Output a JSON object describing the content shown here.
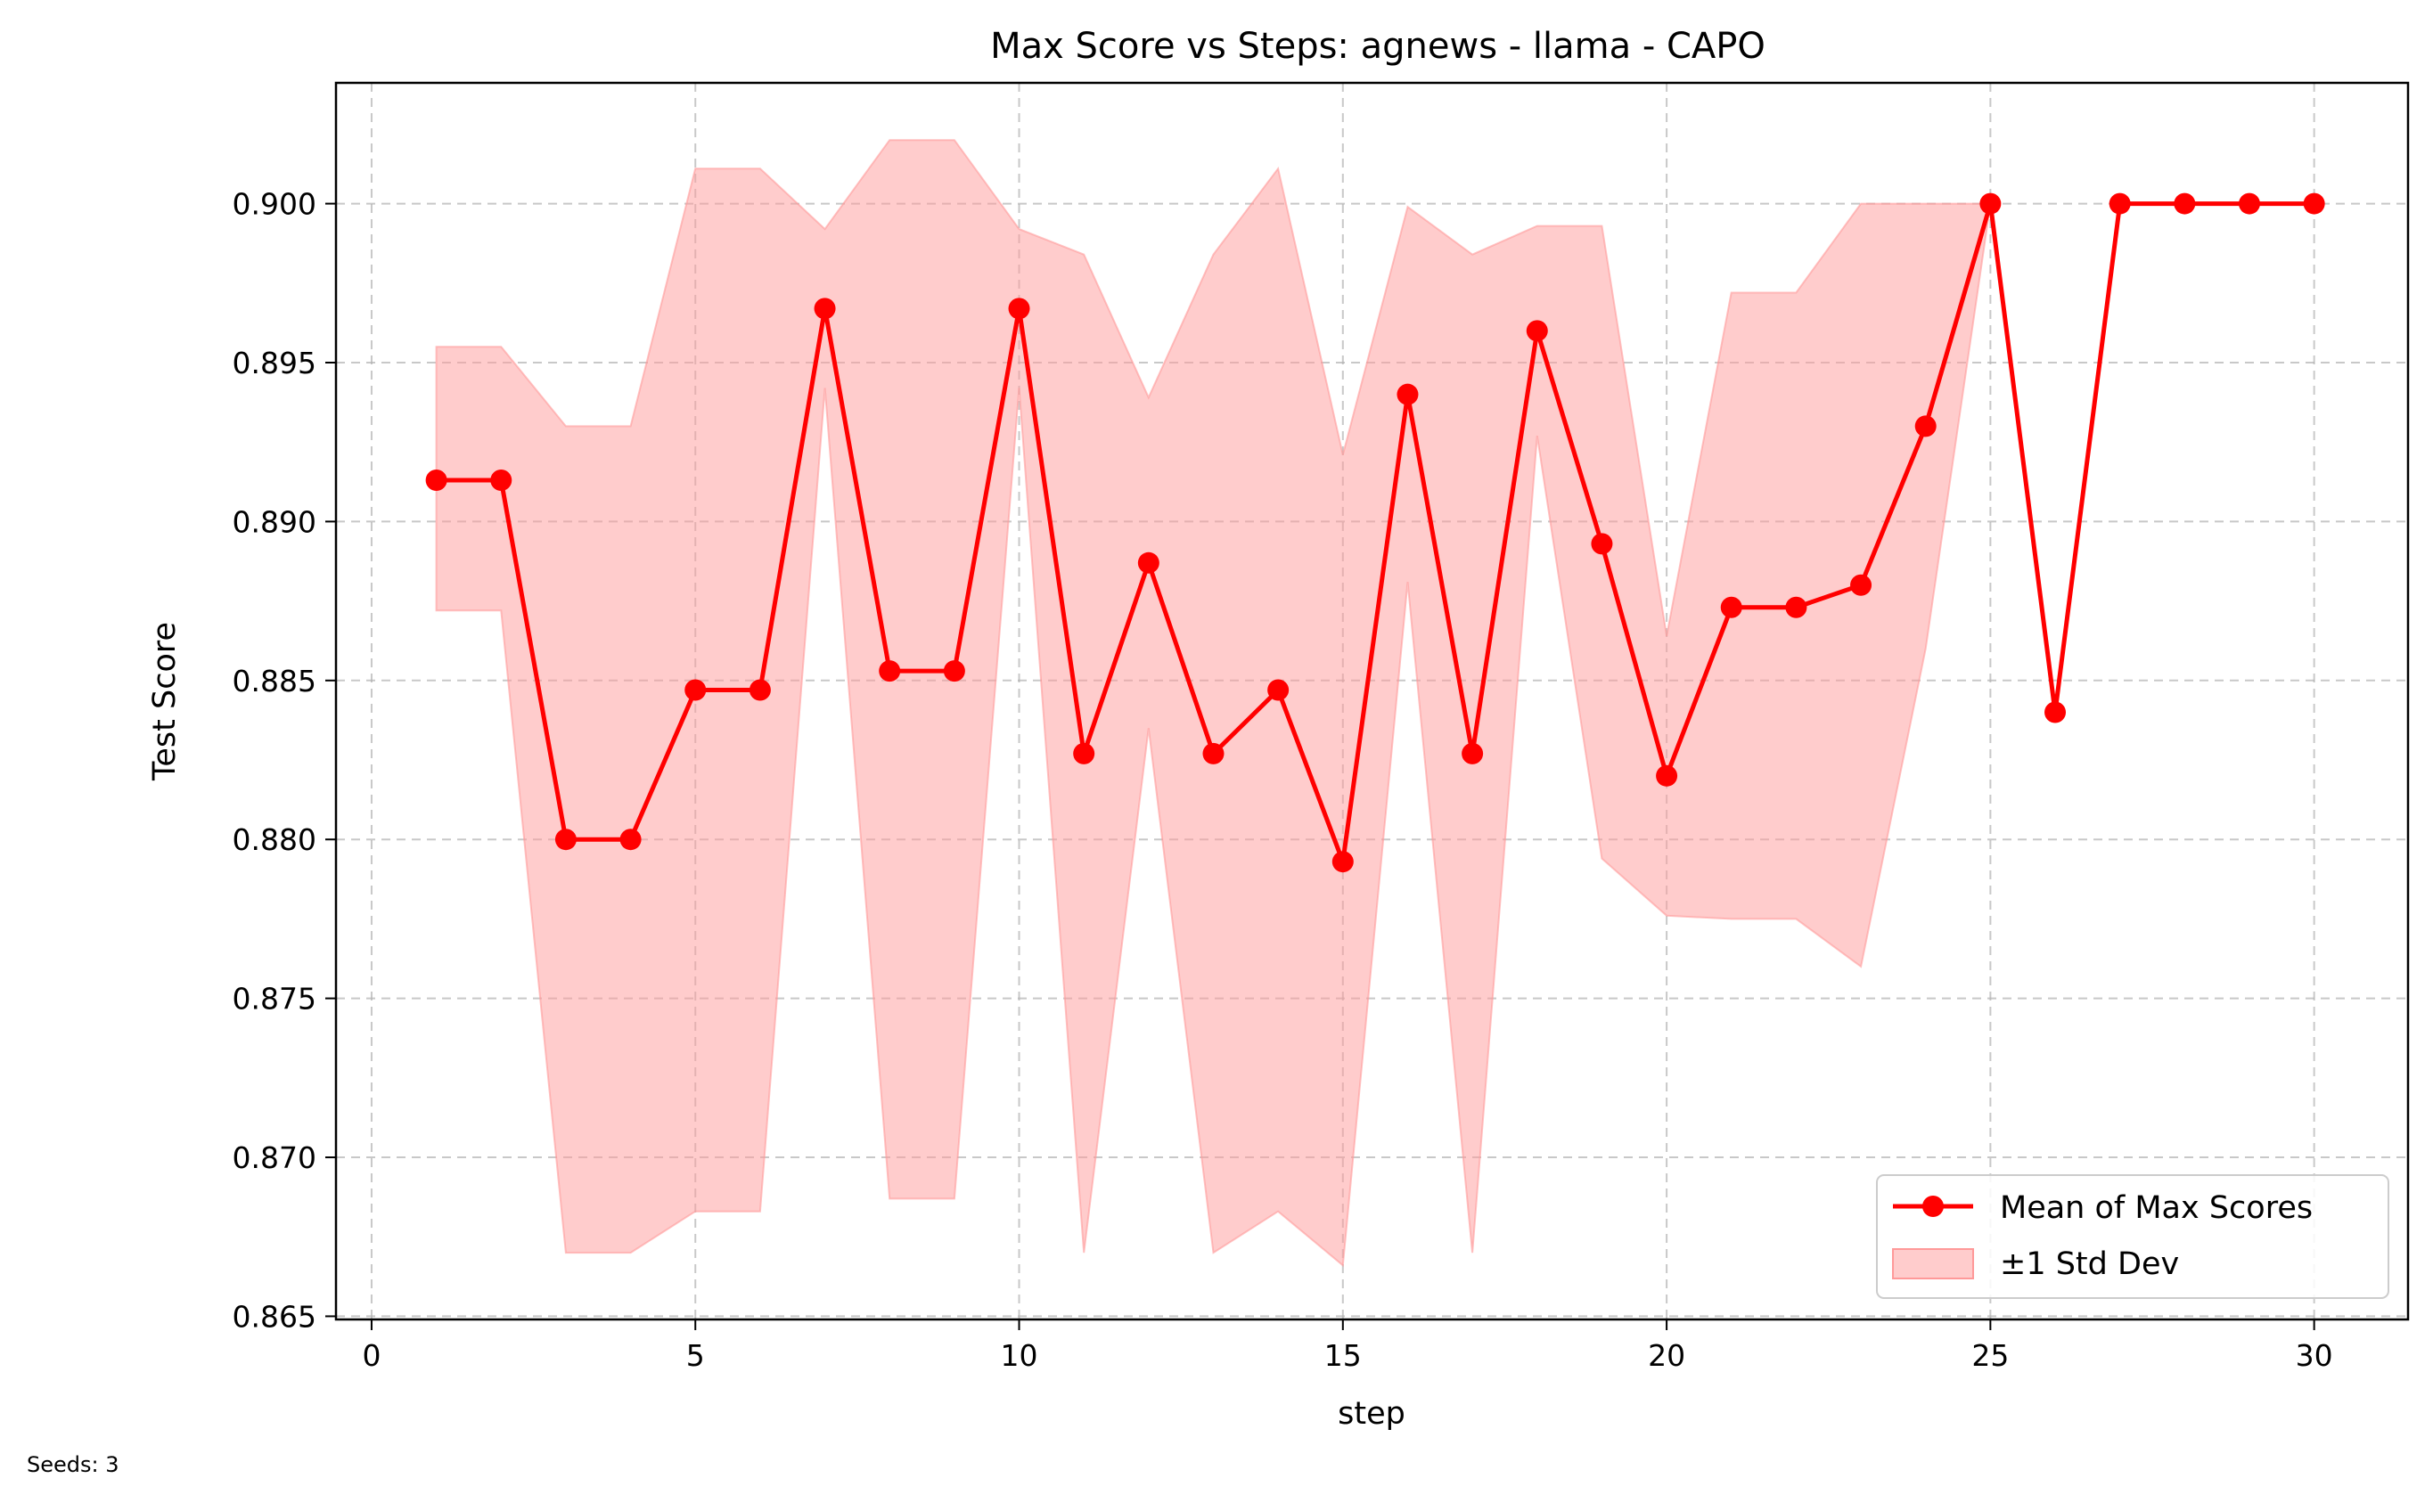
{
  "chart_data": {
    "type": "line",
    "title": "Max Score vs Steps: agnews - llama - CAPO",
    "xlabel": "step",
    "ylabel": "Test Score",
    "xlim": [
      -0.55,
      31.45
    ],
    "ylim": [
      0.8649,
      0.9038
    ],
    "xticks": [
      0,
      5,
      10,
      15,
      20,
      25,
      30
    ],
    "yticks": [
      0.865,
      0.87,
      0.875,
      0.88,
      0.885,
      0.89,
      0.895,
      0.9
    ],
    "ytick_labels": [
      "0.865",
      "0.870",
      "0.875",
      "0.880",
      "0.885",
      "0.890",
      "0.895",
      "0.900"
    ],
    "grid": true,
    "legend_position": "lower-right",
    "x": [
      1,
      2,
      3,
      4,
      5,
      6,
      7,
      8,
      9,
      10,
      11,
      12,
      13,
      14,
      15,
      16,
      17,
      18,
      19,
      20,
      21,
      22,
      23,
      24,
      25,
      26,
      27,
      28,
      29,
      30
    ],
    "series": [
      {
        "name": "Mean of Max Scores",
        "color": "#ff0000",
        "marker": "circle",
        "values": [
          0.8913,
          0.8913,
          0.88,
          0.88,
          0.8847,
          0.8847,
          0.8967,
          0.8853,
          0.8853,
          0.8967,
          0.8827,
          0.8887,
          0.8827,
          0.8847,
          0.8793,
          0.894,
          0.8827,
          0.896,
          0.8893,
          0.882,
          0.8873,
          0.8873,
          0.888,
          0.893,
          0.9,
          0.884,
          0.9,
          0.9,
          0.9,
          0.9
        ]
      }
    ],
    "band": {
      "name": "±1 Std Dev",
      "color": "#ff9999",
      "upper": [
        0.8955,
        0.8955,
        0.893,
        0.893,
        0.9011,
        0.9011,
        0.8992,
        0.902,
        0.902,
        0.8992,
        0.8984,
        0.8939,
        0.8984,
        0.9011,
        0.8921,
        0.8999,
        0.8984,
        0.8993,
        0.8993,
        0.8864,
        0.8972,
        0.8972,
        0.9,
        0.9,
        0.9,
        0.884,
        0.9,
        0.9,
        0.9,
        0.9
      ],
      "lower": [
        0.8872,
        0.8872,
        0.867,
        0.867,
        0.8683,
        0.8683,
        0.8942,
        0.8687,
        0.8687,
        0.8942,
        0.867,
        0.8835,
        0.867,
        0.8683,
        0.8666,
        0.8881,
        0.867,
        0.8927,
        0.8794,
        0.8776,
        0.8775,
        0.8775,
        0.876,
        0.886,
        0.9,
        0.884,
        0.9,
        0.9,
        0.9,
        0.9
      ]
    }
  },
  "footnote": "Seeds: 3"
}
